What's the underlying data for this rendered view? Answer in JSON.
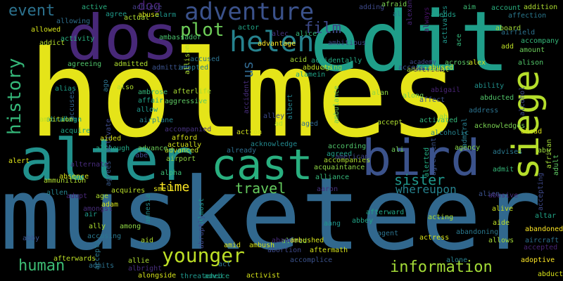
{
  "words": [
    {
      "text": "holmes",
      "color": "#e5e419",
      "vertical": false
    },
    {
      "text": "musketeer",
      "color": "#31688e",
      "vertical": false
    },
    {
      "text": "edit",
      "color": "#1f9e89",
      "vertical": false
    },
    {
      "text": "dos",
      "color": "#482878",
      "vertical": false
    },
    {
      "text": "alter",
      "color": "#21918c",
      "vertical": false
    },
    {
      "text": "cast",
      "color": "#29af7f",
      "vertical": false
    },
    {
      "text": "bird",
      "color": "#3b528b",
      "vertical": false
    },
    {
      "text": "siege",
      "color": "#b5de2b",
      "vertical": true
    },
    {
      "text": "adventure",
      "color": "#3b528b",
      "vertical": false
    },
    {
      "text": "helen",
      "color": "#26828e",
      "vertical": false
    },
    {
      "text": "plot",
      "color": "#6ece58",
      "vertical": false
    },
    {
      "text": "history",
      "color": "#35b779",
      "vertical": true
    },
    {
      "text": "film",
      "color": "#3e4a89",
      "vertical": false
    },
    {
      "text": "event",
      "color": "#2c728e",
      "vertical": false
    },
    {
      "text": "us",
      "color": "#31688e",
      "vertical": true
    },
    {
      "text": "younger",
      "color": "#bddf26",
      "vertical": false
    },
    {
      "text": "human",
      "color": "#3dbc74",
      "vertical": false
    },
    {
      "text": "information",
      "color": "#a2da37",
      "vertical": false
    },
    {
      "text": "travel",
      "color": "#65cb5e",
      "vertical": false
    },
    {
      "text": "sister",
      "color": "#1f968b",
      "vertical": false
    },
    {
      "text": "time",
      "color": "#fde725",
      "vertical": false
    },
    {
      "text": "whereupon",
      "color": "#26828e",
      "vertical": false
    },
    {
      "text": "dog",
      "color": "#482173",
      "vertical": false
    },
    {
      "text": "abraham",
      "color": "#1f9a8a",
      "vertical": false
    },
    {
      "text": "accompanied",
      "color": "#46327e",
      "vertical": false
    },
    {
      "text": "aggressive",
      "color": "#5ec962",
      "vertical": false
    },
    {
      "text": "afterlife",
      "color": "#a8db34",
      "vertical": false
    },
    {
      "text": "afford",
      "color": "#d8e219",
      "vertical": false
    },
    {
      "text": "actually",
      "color": "#d2e21b",
      "vertical": false
    },
    {
      "text": "advanced",
      "color": "#c0df25",
      "vertical": false
    },
    {
      "text": "airport",
      "color": "#90d743",
      "vertical": false
    },
    {
      "text": "smell",
      "color": "#eae51a",
      "vertical": false
    },
    {
      "text": "acquires",
      "color": "#b8de29",
      "vertical": false
    },
    {
      "text": "ambassador",
      "color": "#4ac16d",
      "vertical": false
    },
    {
      "text": "actor",
      "color": "#20a486",
      "vertical": false
    },
    {
      "text": "alec",
      "color": "#46337f",
      "vertical": false
    },
    {
      "text": "alice",
      "color": "#34b679",
      "vertical": false
    },
    {
      "text": "accidentally",
      "color": "#24aa83",
      "vertical": false
    },
    {
      "text": "acid",
      "color": "#a5db36",
      "vertical": false
    },
    {
      "text": "abducts",
      "color": "#c2df23",
      "vertical": false
    },
    {
      "text": "alamein",
      "color": "#20a386",
      "vertical": false
    },
    {
      "text": "academy",
      "color": "#3e4989",
      "vertical": false
    },
    {
      "text": "america",
      "color": "#471063",
      "vertical": false
    },
    {
      "text": "additional",
      "color": "#addc30",
      "vertical": false
    },
    {
      "text": "across",
      "color": "#5ac864",
      "vertical": false
    },
    {
      "text": "alex",
      "color": "#d0e11c",
      "vertical": false
    },
    {
      "text": "alison",
      "color": "#52c569",
      "vertical": false
    },
    {
      "text": "amount",
      "color": "#6ccd5a",
      "vertical": false
    },
    {
      "text": "alan",
      "color": "#8ed645",
      "vertical": false
    },
    {
      "text": "along",
      "color": "#73d056",
      "vertical": false
    },
    {
      "text": "affect",
      "color": "#3b528b",
      "vertical": false
    },
    {
      "text": "abigail",
      "color": "#482475",
      "vertical": false
    },
    {
      "text": "ability",
      "color": "#21918c",
      "vertical": false
    },
    {
      "text": "abducted",
      "color": "#52c569",
      "vertical": false
    },
    {
      "text": "address",
      "color": "#2c728e",
      "vertical": false
    },
    {
      "text": "alcohol",
      "color": "#3e4a89",
      "vertical": true
    },
    {
      "text": "acknowledges",
      "color": "#7ad151",
      "vertical": false
    },
    {
      "text": "ahead",
      "color": "#dde318",
      "vertical": false
    },
    {
      "text": "abu",
      "color": "#9bd93c",
      "vertical": false
    },
    {
      "text": "african",
      "color": "#a2da37",
      "vertical": true
    },
    {
      "text": "adult",
      "color": "#5ec962",
      "vertical": true
    },
    {
      "text": "accepting",
      "color": "#3e4989",
      "vertical": true
    },
    {
      "text": "alcoholic",
      "color": "#26828e",
      "vertical": false
    },
    {
      "text": "agency",
      "color": "#86d549",
      "vertical": false
    },
    {
      "text": "advises",
      "color": "#2a788e",
      "vertical": false
    },
    {
      "text": "admiral",
      "color": "#287d8e",
      "vertical": true
    },
    {
      "text": "admit",
      "color": "#35b779",
      "vertical": false
    },
    {
      "text": "alien",
      "color": "#3b528b",
      "vertical": false
    },
    {
      "text": "alive",
      "color": "#c8e020",
      "vertical": false
    },
    {
      "text": "abusive",
      "color": "#472c7a",
      "vertical": false
    },
    {
      "text": "altar",
      "color": "#20a486",
      "vertical": false
    },
    {
      "text": "aide",
      "color": "#bddf26",
      "vertical": false
    },
    {
      "text": "abandoned",
      "color": "#fde725",
      "vertical": false
    },
    {
      "text": "aircraft",
      "color": "#2d708e",
      "vertical": false
    },
    {
      "text": "allows",
      "color": "#a5db36",
      "vertical": false
    },
    {
      "text": "accepted",
      "color": "#482374",
      "vertical": false
    },
    {
      "text": "adoptive",
      "color": "#fde725",
      "vertical": false
    },
    {
      "text": "abduction",
      "color": "#d8e219",
      "vertical": false
    },
    {
      "text": "abandoning",
      "color": "#2a788e",
      "vertical": false
    },
    {
      "text": "alone",
      "color": "#277f8e",
      "vertical": false
    },
    {
      "text": "actress",
      "color": "#d8e219",
      "vertical": false
    },
    {
      "text": "acting",
      "color": "#a8db34",
      "vertical": false
    },
    {
      "text": "agent",
      "color": "#2c728e",
      "vertical": false
    },
    {
      "text": "abbey",
      "color": "#20a386",
      "vertical": false
    },
    {
      "text": "afterward",
      "color": "#20a386",
      "vertical": false
    },
    {
      "text": "alliance",
      "color": "#35b779",
      "vertical": false
    },
    {
      "text": "aaron",
      "color": "#46327e",
      "vertical": false
    },
    {
      "text": "acquaintance",
      "color": "#8ed645",
      "vertical": false
    },
    {
      "text": "accompanies",
      "color": "#addc30",
      "vertical": false
    },
    {
      "text": "agreed",
      "color": "#1fa088",
      "vertical": false
    },
    {
      "text": "according",
      "color": "#50c46a",
      "vertical": false
    },
    {
      "text": "american",
      "color": "#404688",
      "vertical": false
    },
    {
      "text": "ali",
      "color": "#6ece58",
      "vertical": false
    },
    {
      "text": "agreement",
      "color": "#3b528b",
      "vertical": true
    },
    {
      "text": "alerted",
      "color": "#24aa83",
      "vertical": true
    },
    {
      "text": "accept",
      "color": "#addc30",
      "vertical": false
    },
    {
      "text": "activated",
      "color": "#34b679",
      "vertical": false
    },
    {
      "text": "ah",
      "color": "#8ed645",
      "vertical": false
    },
    {
      "text": "ambulance",
      "color": "#6ece58",
      "vertical": true
    },
    {
      "text": "albert",
      "color": "#25838e",
      "vertical": true
    },
    {
      "text": "accident",
      "color": "#472d7b",
      "vertical": true
    },
    {
      "text": "alley",
      "color": "#3e4989",
      "vertical": false
    },
    {
      "text": "action",
      "color": "#d0e11c",
      "vertical": false
    },
    {
      "text": "acknowledge",
      "color": "#23898e",
      "vertical": false
    },
    {
      "text": "already",
      "color": "#2e6e8e",
      "vertical": false
    },
    {
      "text": "ad",
      "color": "#addc30",
      "vertical": false
    },
    {
      "text": "aged",
      "color": "#31688e",
      "vertical": false
    },
    {
      "text": "aging",
      "color": "#8ed645",
      "vertical": false
    },
    {
      "text": "account",
      "color": "#29af7f",
      "vertical": false
    },
    {
      "text": "affection",
      "color": "#2a788e",
      "vertical": false
    },
    {
      "text": "addition",
      "color": "#addc30",
      "vertical": false
    },
    {
      "text": "aim",
      "color": "#3dbc74",
      "vertical": false
    },
    {
      "text": "amends",
      "color": "#1fa088",
      "vertical": false
    },
    {
      "text": "al",
      "color": "#26828e",
      "vertical": false
    },
    {
      "text": "adding",
      "color": "#3e4a89",
      "vertical": false
    },
    {
      "text": "afraid",
      "color": "#7ad151",
      "vertical": false
    },
    {
      "text": "alexander",
      "color": "#482475",
      "vertical": true
    },
    {
      "text": "activates",
      "color": "#1f968b",
      "vertical": true
    },
    {
      "text": "ace",
      "color": "#32b67a",
      "vertical": true
    },
    {
      "text": "abused",
      "color": "#d5e21a",
      "vertical": false
    },
    {
      "text": "aboard",
      "color": "#a2da37",
      "vertical": false
    },
    {
      "text": "airfield",
      "color": "#2c728e",
      "vertical": false
    },
    {
      "text": "accompany",
      "color": "#35b779",
      "vertical": false
    },
    {
      "text": "add",
      "color": "#bddf26",
      "vertical": false
    },
    {
      "text": "always",
      "color": "#471164",
      "vertical": true
    },
    {
      "text": "access",
      "color": "#3b528b",
      "vertical": false
    },
    {
      "text": "ambitious",
      "color": "#3e4989",
      "vertical": false
    },
    {
      "text": "advantage",
      "color": "#fde725",
      "vertical": false
    },
    {
      "text": "accused",
      "color": "#2c728e",
      "vertical": false
    },
    {
      "text": "agree",
      "color": "#1f9a8a",
      "vertical": false
    },
    {
      "text": "achieve",
      "color": "#433e85",
      "vertical": false
    },
    {
      "text": "alarm",
      "color": "#1f968b",
      "vertical": false
    },
    {
      "text": "active",
      "color": "#29af7f",
      "vertical": false
    },
    {
      "text": "abuse",
      "color": "#d5e21a",
      "vertical": false
    },
    {
      "text": "actual",
      "color": "#addc30",
      "vertical": false
    },
    {
      "text": "allowing",
      "color": "#2e6e8e",
      "vertical": false
    },
    {
      "text": "allowed",
      "color": "#d5e21a",
      "vertical": false
    },
    {
      "text": "addict",
      "color": "#b5de2b",
      "vertical": false
    },
    {
      "text": "activity",
      "color": "#29af7f",
      "vertical": false
    },
    {
      "text": "agreeing",
      "color": "#50c46a",
      "vertical": false
    },
    {
      "text": "admitted",
      "color": "#addc30",
      "vertical": false
    },
    {
      "text": "admitting",
      "color": "#3b528b",
      "vertical": false
    },
    {
      "text": "adopted",
      "color": "#2a788e",
      "vertical": false
    },
    {
      "text": "allison",
      "color": "#addc30",
      "vertical": true
    },
    {
      "text": "also",
      "color": "#addc30",
      "vertical": false
    },
    {
      "text": "ambrose",
      "color": "#35b779",
      "vertical": false
    },
    {
      "text": "affair",
      "color": "#20a386",
      "vertical": false
    },
    {
      "text": "allow",
      "color": "#1f968b",
      "vertical": false
    },
    {
      "text": "airplane",
      "color": "#26828e",
      "vertical": false
    },
    {
      "text": "align",
      "color": "#1fa088",
      "vertical": false
    },
    {
      "text": "accuses",
      "color": "#32648e",
      "vertical": true
    },
    {
      "text": "ago",
      "color": "#2c728e",
      "vertical": true
    },
    {
      "text": "ambition",
      "color": "#bddf26",
      "vertical": false
    },
    {
      "text": "alias",
      "color": "#1fa088",
      "vertical": false
    },
    {
      "text": "acquire",
      "color": "#20a486",
      "vertical": false
    },
    {
      "text": "aided",
      "color": "#d8e219",
      "vertical": false
    },
    {
      "text": "advance",
      "color": "#6ece58",
      "vertical": false
    },
    {
      "text": "although",
      "color": "#22a785",
      "vertical": false
    },
    {
      "text": "activate",
      "color": "#3e4a89",
      "vertical": true
    },
    {
      "text": "abe",
      "color": "#3e4989",
      "vertical": false
    },
    {
      "text": "alert",
      "color": "#dde318",
      "vertical": false
    },
    {
      "text": "alternate",
      "color": "#472c7a",
      "vertical": false
    },
    {
      "text": "alpha",
      "color": "#3dbc74",
      "vertical": false
    },
    {
      "text": "ammunition",
      "color": "#addc30",
      "vertical": false
    },
    {
      "text": "allen",
      "color": "#26828e",
      "vertical": false
    },
    {
      "text": "absence",
      "color": "#d5e21a",
      "vertical": false
    },
    {
      "text": "adopt",
      "color": "#482878",
      "vertical": false
    },
    {
      "text": "age",
      "color": "#addc30",
      "vertical": false
    },
    {
      "text": "amongst",
      "color": "#472c7a",
      "vertical": false
    },
    {
      "text": "agrees",
      "color": "#38598c",
      "vertical": true
    },
    {
      "text": "adam",
      "color": "#d2e21b",
      "vertical": false
    },
    {
      "text": "air",
      "color": "#1f9a8a",
      "vertical": false
    },
    {
      "text": "abby",
      "color": "#3b528b",
      "vertical": false
    },
    {
      "text": "ally",
      "color": "#addc30",
      "vertical": false
    },
    {
      "text": "accusing",
      "color": "#2a788e",
      "vertical": false
    },
    {
      "text": "among",
      "color": "#8ed645",
      "vertical": false
    },
    {
      "text": "aid",
      "color": "#addc30",
      "vertical": false
    },
    {
      "text": "amnesia",
      "color": "#238a8d",
      "vertical": true
    },
    {
      "text": "almost",
      "color": "#1f968b",
      "vertical": true
    },
    {
      "text": "abruptly",
      "color": "#3e4989",
      "vertical": true
    },
    {
      "text": "amid",
      "color": "#d8e219",
      "vertical": false
    },
    {
      "text": "ambush",
      "color": "#d5e21a",
      "vertical": false
    },
    {
      "text": "aang",
      "color": "#1f968b",
      "vertical": false
    },
    {
      "text": "alfred",
      "color": "#6ece58",
      "vertical": false
    },
    {
      "text": "abandon",
      "color": "#472c7a",
      "vertical": false
    },
    {
      "text": "ambushed",
      "color": "#d5e21a",
      "vertical": false
    },
    {
      "text": "abortion",
      "color": "#3e4989",
      "vertical": false
    },
    {
      "text": "aftermath",
      "color": "#d5e21a",
      "vertical": false
    },
    {
      "text": "afterwards",
      "color": "#bddf26",
      "vertical": false
    },
    {
      "text": "admits",
      "color": "#2c728e",
      "vertical": false
    },
    {
      "text": "allie",
      "color": "#addc30",
      "vertical": false
    },
    {
      "text": "albright",
      "color": "#472d7b",
      "vertical": false
    },
    {
      "text": "accepts",
      "color": "#2a788e",
      "vertical": true
    },
    {
      "text": "alongside",
      "color": "#d5e21a",
      "vertical": false
    },
    {
      "text": "threatened",
      "color": "#1f968b",
      "vertical": false
    },
    {
      "text": "advice",
      "color": "#20a386",
      "vertical": false
    },
    {
      "text": "act",
      "color": "#2c728e",
      "vertical": false
    },
    {
      "text": "activist",
      "color": "#d5e21a",
      "vertical": false
    },
    {
      "text": "accomplice",
      "color": "#3b528b",
      "vertical": false
    }
  ]
}
